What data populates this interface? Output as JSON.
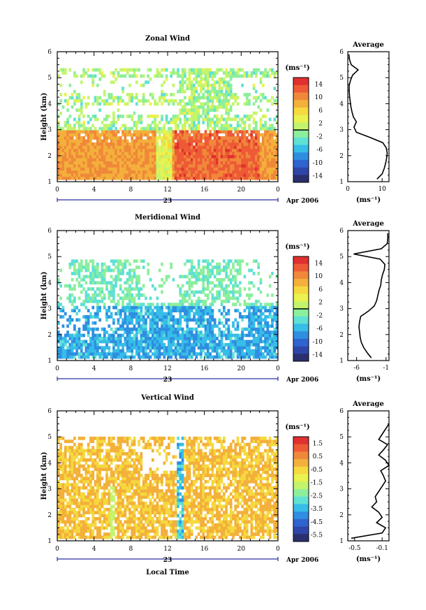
{
  "x_ticks": [
    "0",
    "4",
    "8",
    "12",
    "16",
    "20",
    "0"
  ],
  "day_label": "23",
  "month_label": "Apr 2006",
  "ylabel": "Height (km)",
  "xlabel": "Local Time",
  "y_ticks": [
    "1",
    "2",
    "3",
    "4",
    "5",
    "6"
  ],
  "unit": "(ms⁻¹)",
  "avg_title": "Average",
  "colors": [
    "#2a2f6e",
    "#2e46a8",
    "#2f63cf",
    "#2f8ee0",
    "#36bde8",
    "#5fe1d4",
    "#8cef9c",
    "#c3f56c",
    "#eaf24f",
    "#f5d93e",
    "#f3b03b",
    "#f0883a",
    "#ee5a36",
    "#e0302f"
  ],
  "chart_data": [
    {
      "type": "heatmap",
      "title": "Zonal Wind",
      "xlim": [
        0,
        24
      ],
      "ylim": [
        1,
        6
      ],
      "colorbar": {
        "ticks": [
          14,
          10,
          6,
          2,
          -2,
          -6,
          -10,
          -14
        ],
        "range": [
          -16,
          16
        ]
      },
      "profile": {
        "type": "line",
        "title": "Average",
        "xticks": [
          "0",
          "10"
        ],
        "xlim": [
          0,
          12
        ],
        "heights": [
          1.1,
          1.3,
          1.5,
          1.7,
          1.9,
          2.1,
          2.3,
          2.5,
          2.7,
          2.9,
          3.1,
          3.3,
          3.5,
          3.7,
          3.9,
          4.1,
          4.3,
          4.5,
          4.7,
          4.9,
          5.1,
          5.3,
          5.5,
          5.7,
          5.9
        ],
        "values": [
          8.5,
          10.0,
          10.6,
          11.0,
          11.3,
          11.5,
          11.2,
          10.2,
          6.5,
          2.5,
          1.8,
          2.5,
          1.6,
          1.2,
          0.9,
          0.7,
          0.5,
          0.4,
          0.4,
          0.8,
          1.4,
          3.0,
          1.0,
          0.5,
          0.3
        ]
      }
    },
    {
      "type": "heatmap",
      "title": "Meridional Wind",
      "xlim": [
        0,
        24
      ],
      "ylim": [
        1,
        6
      ],
      "colorbar": {
        "ticks": [
          14,
          10,
          6,
          2,
          -2,
          -6,
          -10,
          -14
        ],
        "range": [
          -16,
          16
        ]
      },
      "profile": {
        "type": "line",
        "title": "Average",
        "xticks": [
          "-6",
          "-1"
        ],
        "xlim": [
          -7.5,
          -0.5
        ],
        "heights": [
          1.1,
          1.3,
          1.5,
          1.7,
          1.9,
          2.1,
          2.3,
          2.5,
          2.7,
          2.9,
          3.1,
          3.3,
          3.5,
          3.7,
          3.9,
          4.1,
          4.3,
          4.5,
          4.7,
          4.9,
          5.1,
          5.3,
          5.5,
          5.7,
          5.9
        ],
        "values": [
          -3.5,
          -4.2,
          -4.8,
          -5.2,
          -5.4,
          -5.5,
          -5.6,
          -5.5,
          -5.3,
          -4.0,
          -3.0,
          -2.6,
          -2.4,
          -2.2,
          -1.9,
          -1.8,
          -1.6,
          -1.3,
          -1.2,
          -2.0,
          -6.5,
          -1.8,
          -0.8,
          -0.7,
          -0.7
        ]
      }
    },
    {
      "type": "heatmap",
      "title": "Vertical Wind",
      "xlim": [
        0,
        24
      ],
      "ylim": [
        1,
        6
      ],
      "colorbar": {
        "ticks": [
          1.5,
          0.5,
          -0.5,
          -1.5,
          -2.5,
          -3.5,
          -4.5,
          -5.5
        ],
        "range": [
          -6,
          2
        ]
      },
      "profile": {
        "type": "line",
        "title": "Average",
        "xticks": [
          "-0.5",
          "-0.1"
        ],
        "xlim": [
          -0.6,
          0.0
        ],
        "heights": [
          1.1,
          1.3,
          1.5,
          1.7,
          1.9,
          2.1,
          2.3,
          2.5,
          2.7,
          2.9,
          3.1,
          3.3,
          3.5,
          3.7,
          3.9,
          4.1,
          4.3,
          4.5,
          4.7,
          4.9,
          5.1,
          5.3,
          5.5
        ],
        "values": [
          -0.55,
          -0.1,
          -0.05,
          -0.18,
          -0.1,
          -0.15,
          -0.25,
          -0.18,
          -0.2,
          -0.15,
          -0.1,
          -0.05,
          -0.08,
          -0.12,
          -0.0,
          -0.05,
          -0.15,
          -0.08,
          -0.02,
          -0.15,
          -0.1,
          -0.05,
          -0.0
        ]
      }
    }
  ]
}
